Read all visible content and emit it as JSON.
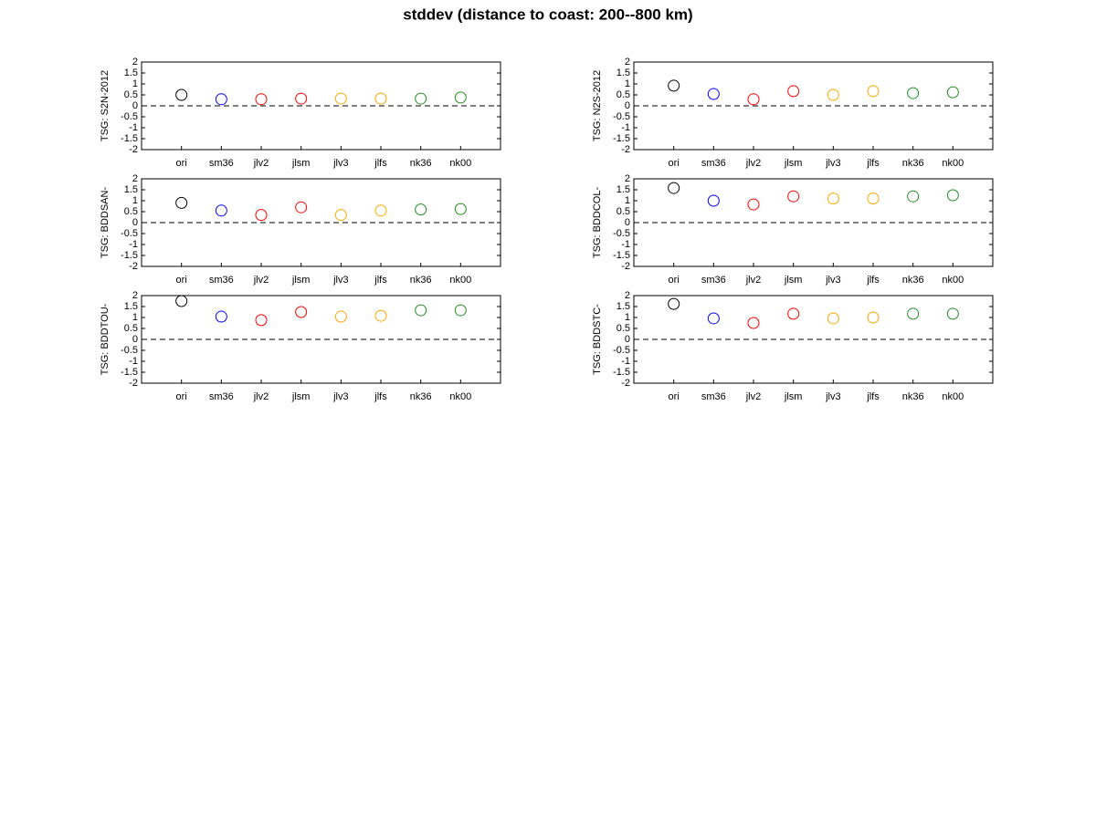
{
  "title": "stddev (distance to coast: 200--800 km)",
  "chart_data": [
    {
      "type": "scatter",
      "ylabel": "TSG: S2N-2012",
      "categories": [
        "ori",
        "sm36",
        "jlv2",
        "jlsm",
        "jlv3",
        "jlfs",
        "nk36",
        "nk00"
      ],
      "values": [
        0.5,
        0.3,
        0.3,
        0.33,
        0.33,
        0.33,
        0.33,
        0.38
      ],
      "colors": [
        "#000000",
        "#0000ff",
        "#ff0000",
        "#ff0000",
        "#ffa500",
        "#ffa500",
        "#228b22",
        "#228b22"
      ],
      "ylim": [
        -2,
        2
      ],
      "yticks": [
        -2,
        -1.5,
        -1,
        -0.5,
        0,
        0.5,
        1,
        1.5,
        2
      ],
      "hline": 0
    },
    {
      "type": "scatter",
      "ylabel": "TSG: N2S-2012",
      "categories": [
        "ori",
        "sm36",
        "jlv2",
        "jlsm",
        "jlv3",
        "jlfs",
        "nk36",
        "nk00"
      ],
      "values": [
        0.92,
        0.54,
        0.3,
        0.67,
        0.5,
        0.67,
        0.58,
        0.62
      ],
      "colors": [
        "#000000",
        "#0000ff",
        "#ff0000",
        "#ff0000",
        "#ffa500",
        "#ffa500",
        "#228b22",
        "#228b22"
      ],
      "ylim": [
        -2,
        2
      ],
      "yticks": [
        -2,
        -1.5,
        -1,
        -0.5,
        0,
        0.5,
        1,
        1.5,
        2
      ],
      "hline": 0
    },
    {
      "type": "scatter",
      "ylabel": "TSG: BDDSAN-",
      "categories": [
        "ori",
        "sm36",
        "jlv2",
        "jlsm",
        "jlv3",
        "jlfs",
        "nk36",
        "nk00"
      ],
      "values": [
        0.9,
        0.55,
        0.35,
        0.7,
        0.35,
        0.55,
        0.6,
        0.62
      ],
      "colors": [
        "#000000",
        "#0000ff",
        "#ff0000",
        "#ff0000",
        "#ffa500",
        "#ffa500",
        "#228b22",
        "#228b22"
      ],
      "ylim": [
        -2,
        2
      ],
      "yticks": [
        -2,
        -1.5,
        -1,
        -0.5,
        0,
        0.5,
        1,
        1.5,
        2
      ],
      "hline": 0
    },
    {
      "type": "scatter",
      "ylabel": "TSG: BDDCOL-",
      "categories": [
        "ori",
        "sm36",
        "jlv2",
        "jlsm",
        "jlv3",
        "jlfs",
        "nk36",
        "nk00"
      ],
      "values": [
        1.58,
        1.0,
        0.83,
        1.2,
        1.1,
        1.1,
        1.2,
        1.25
      ],
      "colors": [
        "#000000",
        "#0000ff",
        "#ff0000",
        "#ff0000",
        "#ffa500",
        "#ffa500",
        "#228b22",
        "#228b22"
      ],
      "ylim": [
        -2,
        2
      ],
      "yticks": [
        -2,
        -1.5,
        -1,
        -0.5,
        0,
        0.5,
        1,
        1.5,
        2
      ],
      "hline": 0
    },
    {
      "type": "scatter",
      "ylabel": "TSG: BDDTOU-",
      "categories": [
        "ori",
        "sm36",
        "jlv2",
        "jlsm",
        "jlv3",
        "jlfs",
        "nk36",
        "nk00"
      ],
      "values": [
        1.75,
        1.04,
        0.88,
        1.25,
        1.04,
        1.08,
        1.33,
        1.33
      ],
      "colors": [
        "#000000",
        "#0000ff",
        "#ff0000",
        "#ff0000",
        "#ffa500",
        "#ffa500",
        "#228b22",
        "#228b22"
      ],
      "ylim": [
        -2,
        2
      ],
      "yticks": [
        -2,
        -1.5,
        -1,
        -0.5,
        0,
        0.5,
        1,
        1.5,
        2
      ],
      "hline": 0
    },
    {
      "type": "scatter",
      "ylabel": "TSG: BDDSTC-",
      "categories": [
        "ori",
        "sm36",
        "jlv2",
        "jlsm",
        "jlv3",
        "jlfs",
        "nk36",
        "nk00"
      ],
      "values": [
        1.62,
        0.96,
        0.75,
        1.17,
        0.96,
        1.0,
        1.17,
        1.17
      ],
      "colors": [
        "#000000",
        "#0000ff",
        "#ff0000",
        "#ff0000",
        "#ffa500",
        "#ffa500",
        "#228b22",
        "#228b22"
      ],
      "ylim": [
        -2,
        2
      ],
      "yticks": [
        -2,
        -1.5,
        -1,
        -0.5,
        0,
        0.5,
        1,
        1.5,
        2
      ],
      "hline": 0
    }
  ]
}
